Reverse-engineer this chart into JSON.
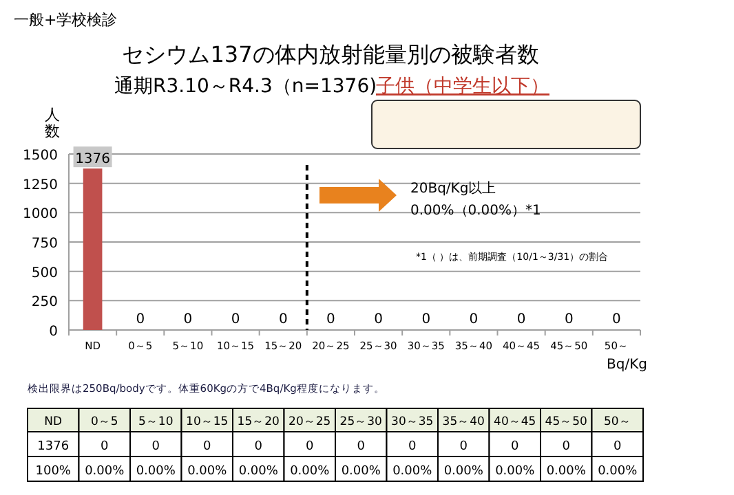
{
  "chart_data": {
    "type": "bar",
    "title": "セシウム137の体内放射能量別の被験者数",
    "subtitle": "通期R3.10～R4.3（n=1376)",
    "ylabel": "人数",
    "xlabel": "Bq/Kg",
    "categories": [
      "ND",
      "0～5",
      "5～10",
      "10～15",
      "15～20",
      "20～25",
      "25～30",
      "30～35",
      "35～40",
      "40～45",
      "45～50",
      "50～"
    ],
    "values": [
      1376,
      0,
      0,
      0,
      0,
      0,
      0,
      0,
      0,
      0,
      0,
      0
    ],
    "color": "#c0504d",
    "ylim": [
      0,
      1500
    ],
    "yticks": [
      0,
      250,
      500,
      750,
      1000,
      1250,
      1500
    ],
    "grid": "y",
    "data_labels": true,
    "ref_lines": [
      {
        "axis": "x",
        "value": "20～25",
        "line_style": "dashed",
        "color": "#000000"
      }
    ],
    "annotations": [
      "一般+学校検診",
      "子供（中学生以下）",
      "20Bq/Kg以上",
      "0.00%（0.00%）*1",
      "*1（ ）は、前期調査（10/1～3/31）の割合",
      "検出限界は250Bq/bodyです。体重60Kgの方で4Bq/Kg程度になります。",
      "1376",
      "0",
      "0",
      "0",
      "0",
      "0",
      "0",
      "0",
      "0",
      "0",
      "0",
      "0",
      "100%",
      "0.00%",
      "0.00%",
      "0.00%",
      "0.00%",
      "0.00%",
      "0.00%",
      "0.00%",
      "0.00%",
      "0.00%",
      "0.00%",
      "0.00%"
    ]
  }
}
